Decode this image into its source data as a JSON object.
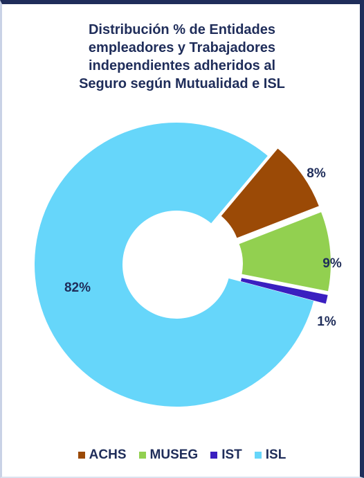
{
  "chart_data": {
    "type": "pie",
    "donut": true,
    "title_lines": [
      "Distribución % de Entidades",
      "empleadores y Trabajadores",
      "independientes adheridos al",
      "Seguro según Mutualidad e ISL"
    ],
    "categories": [
      "ACHS",
      "MUSEG",
      "IST",
      "ISL"
    ],
    "values": [
      8,
      9,
      1,
      82
    ],
    "labels": [
      "8%",
      "9%",
      "1%",
      "82%"
    ],
    "unit": "%",
    "colors": [
      "#9b4a06",
      "#92d050",
      "#3a1fc0",
      "#66d6fa"
    ],
    "exploded": [
      "ACHS",
      "MUSEG",
      "IST"
    ],
    "legend_position": "bottom"
  }
}
